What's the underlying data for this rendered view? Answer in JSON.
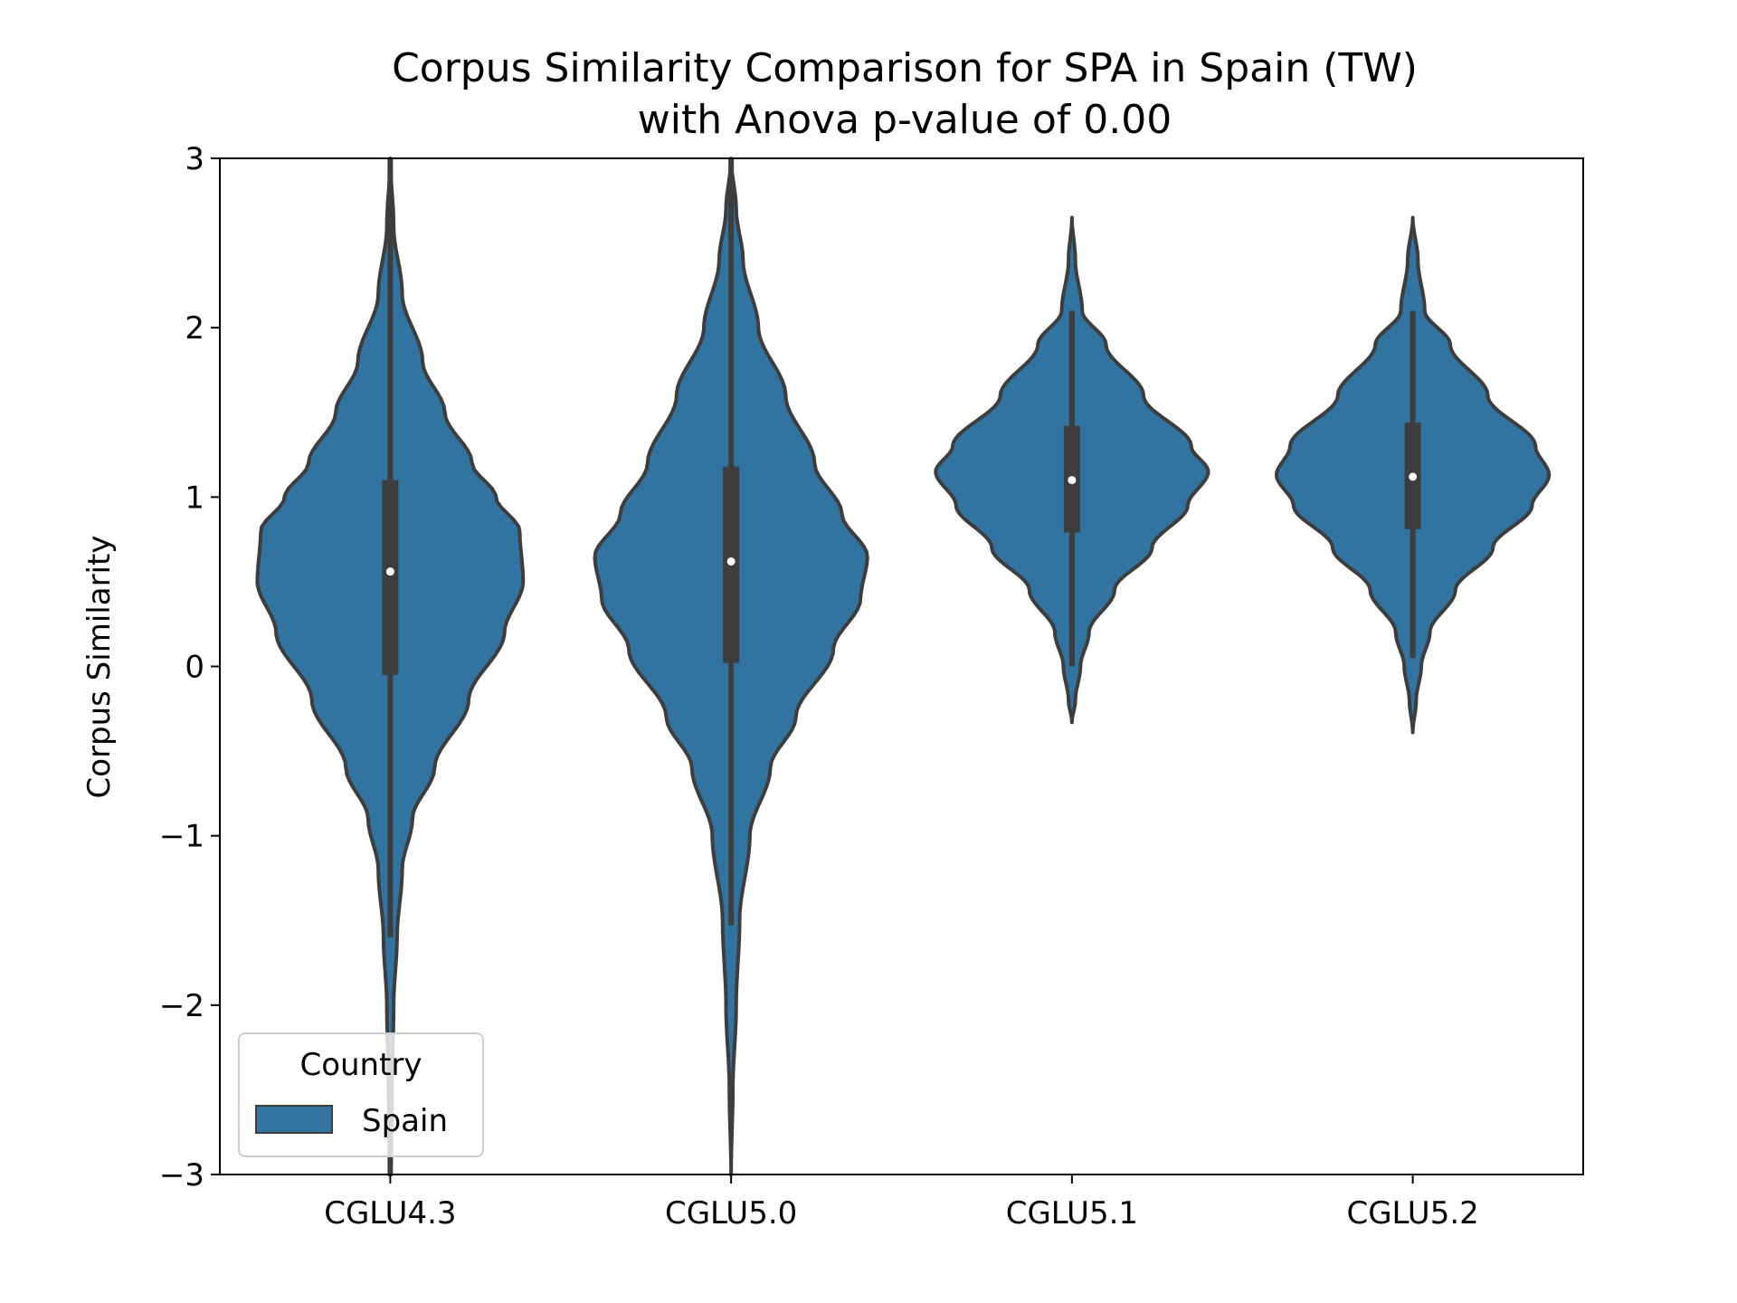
{
  "chart_data": {
    "type": "violin",
    "title_line1": "Corpus Similarity Comparison for SPA in Spain (TW)",
    "title_line2": "with Anova p-value of 0.00",
    "xlabel": "",
    "ylabel": "Corpus Similarity",
    "ylim": [
      -3,
      3
    ],
    "y_ticks": [
      {
        "value": 3,
        "label": "3"
      },
      {
        "value": 2,
        "label": "2"
      },
      {
        "value": 1,
        "label": "1"
      },
      {
        "value": 0,
        "label": "0"
      },
      {
        "value": -1,
        "label": "−1"
      },
      {
        "value": -2,
        "label": "−2"
      },
      {
        "value": -3,
        "label": "−3"
      }
    ],
    "categories": [
      "CGLU4.3",
      "CGLU5.0",
      "CGLU5.1",
      "CGLU5.2"
    ],
    "grid": false,
    "legend": {
      "title": "Country",
      "placement": "lower-left",
      "entries": [
        "Spain"
      ]
    },
    "colors": {
      "fill": "#3274a1",
      "edge": "#3d3d3d",
      "median": "#ffffff"
    },
    "series": [
      {
        "name": "Spain",
        "violins": [
          {
            "category": "CGLU4.3",
            "median": 0.56,
            "q1": -0.05,
            "q3": 1.1,
            "whisker_low": -1.6,
            "whisker_high": 3.0,
            "density_max_halfwidth": 0.8,
            "profile": [
              [
                3.0,
                0.0
              ],
              [
                2.6,
                0.02
              ],
              [
                2.2,
                0.07
              ],
              [
                1.8,
                0.19
              ],
              [
                1.5,
                0.32
              ],
              [
                1.2,
                0.48
              ],
              [
                1.0,
                0.62
              ],
              [
                0.8,
                0.76
              ],
              [
                0.5,
                0.78
              ],
              [
                0.2,
                0.67
              ],
              [
                -0.2,
                0.46
              ],
              [
                -0.6,
                0.26
              ],
              [
                -0.9,
                0.13
              ],
              [
                -1.2,
                0.07
              ],
              [
                -1.6,
                0.04
              ],
              [
                -2.0,
                0.02
              ],
              [
                -2.5,
                0.01
              ],
              [
                -3.0,
                0.005
              ]
            ]
          },
          {
            "category": "CGLU5.0",
            "median": 0.62,
            "q1": 0.02,
            "q3": 1.18,
            "whisker_low": -1.53,
            "whisker_high": 3.0,
            "density_max_halfwidth": 0.8,
            "profile": [
              [
                3.0,
                0.0
              ],
              [
                2.7,
                0.03
              ],
              [
                2.4,
                0.07
              ],
              [
                2.0,
                0.16
              ],
              [
                1.6,
                0.32
              ],
              [
                1.2,
                0.49
              ],
              [
                0.9,
                0.65
              ],
              [
                0.65,
                0.8
              ],
              [
                0.4,
                0.76
              ],
              [
                0.1,
                0.6
              ],
              [
                -0.3,
                0.38
              ],
              [
                -0.6,
                0.23
              ],
              [
                -1.0,
                0.11
              ],
              [
                -1.5,
                0.05
              ],
              [
                -2.0,
                0.03
              ],
              [
                -2.5,
                0.01
              ],
              [
                -3.0,
                0.0
              ]
            ]
          },
          {
            "category": "CGLU5.1",
            "median": 1.1,
            "q1": 0.79,
            "q3": 1.42,
            "whisker_low": 0.0,
            "whisker_high": 2.1,
            "density_max_halfwidth": 0.8,
            "profile": [
              [
                2.65,
                0.0
              ],
              [
                2.4,
                0.02
              ],
              [
                2.1,
                0.06
              ],
              [
                1.9,
                0.2
              ],
              [
                1.6,
                0.42
              ],
              [
                1.3,
                0.7
              ],
              [
                1.15,
                0.8
              ],
              [
                0.95,
                0.68
              ],
              [
                0.7,
                0.47
              ],
              [
                0.45,
                0.25
              ],
              [
                0.2,
                0.1
              ],
              [
                0.0,
                0.05
              ],
              [
                -0.2,
                0.02
              ],
              [
                -0.33,
                0.0
              ]
            ]
          },
          {
            "category": "CGLU5.2",
            "median": 1.12,
            "q1": 0.81,
            "q3": 1.44,
            "whisker_low": 0.05,
            "whisker_high": 2.1,
            "density_max_halfwidth": 0.8,
            "profile": [
              [
                2.65,
                0.0
              ],
              [
                2.4,
                0.03
              ],
              [
                2.1,
                0.07
              ],
              [
                1.9,
                0.22
              ],
              [
                1.6,
                0.44
              ],
              [
                1.3,
                0.72
              ],
              [
                1.13,
                0.8
              ],
              [
                0.95,
                0.7
              ],
              [
                0.7,
                0.47
              ],
              [
                0.45,
                0.25
              ],
              [
                0.2,
                0.1
              ],
              [
                0.0,
                0.05
              ],
              [
                -0.2,
                0.02
              ],
              [
                -0.39,
                0.0
              ]
            ]
          }
        ]
      }
    ]
  }
}
